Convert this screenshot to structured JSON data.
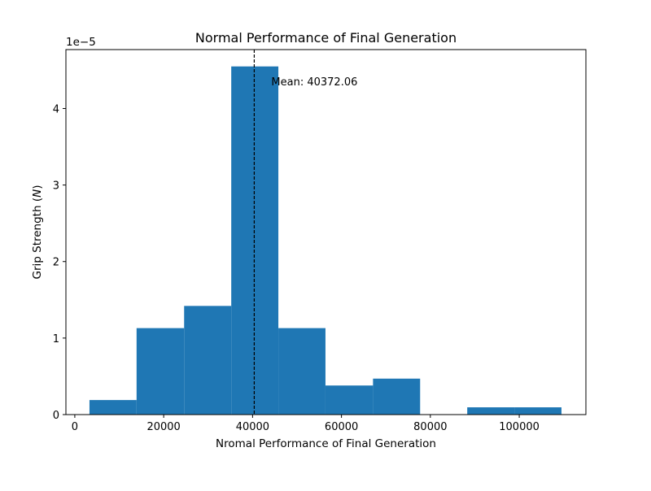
{
  "chart_data": {
    "type": "bar",
    "title": "Normal Performance of Final Generation",
    "xlabel": "Nromal Performance of Final Generation",
    "ylabel": "Grip Strength (N)",
    "offset_text": "1e−5",
    "xlim": [
      -2000,
      115000
    ],
    "ylim": [
      0,
      4.77e-05
    ],
    "xticks": [
      0,
      20000,
      40000,
      60000,
      80000,
      100000
    ],
    "xtick_labels": [
      "0",
      "20000",
      "40000",
      "60000",
      "80000",
      "100000"
    ],
    "yticks": [
      0,
      1e-05,
      2e-05,
      3e-05,
      4e-05
    ],
    "ytick_labels": [
      "0",
      "1",
      "2",
      "3",
      "4"
    ],
    "bin_edges": [
      3300,
      13900,
      24600,
      35200,
      45800,
      56400,
      67100,
      77700,
      88300,
      98900,
      109500
    ],
    "values": [
      1.9e-06,
      1.13e-05,
      1.42e-05,
      4.55e-05,
      1.13e-05,
      3.8e-06,
      4.7e-06,
      0,
      9.5e-07,
      9.5e-07
    ],
    "bar_color": "#1f77b4",
    "mean_line": {
      "x": 40372.06,
      "label": "Mean: 40372.06",
      "style": "dashed",
      "color": "#000000"
    },
    "grid": false,
    "legend": "none"
  }
}
